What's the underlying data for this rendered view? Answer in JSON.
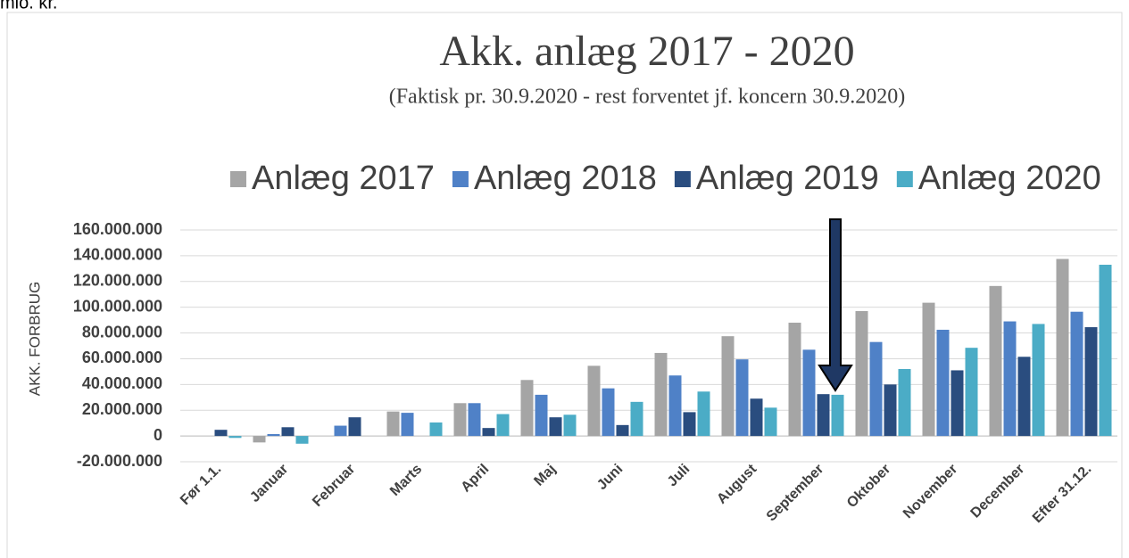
{
  "unit_note": "mio. kr.",
  "chart_data": {
    "type": "bar",
    "title": "Akk. anlæg 2017 - 2020",
    "subtitle": "(Faktisk pr. 30.9.2020 - rest forventet jf. koncern 30.9.2020)",
    "y_label": "AKK. FORBRUG",
    "categories": [
      "Før 1.1.",
      "Januar",
      "Februar",
      "Marts",
      "April",
      "Maj",
      "Juni",
      "Juli",
      "August",
      "September",
      "Oktober",
      "November",
      "December",
      "Efter 31.12."
    ],
    "series": [
      {
        "name": "Anlæg 2017",
        "color": "#a5a5a5",
        "values": [
          0,
          -5000000,
          0,
          19000000,
          25500000,
          43500000,
          54500000,
          64500000,
          77500000,
          88000000,
          97000000,
          103500000,
          116500000,
          137500000
        ]
      },
      {
        "name": "Anlæg 2018",
        "color": "#4f81c7",
        "values": [
          0,
          1500000,
          8000000,
          18000000,
          25500000,
          32000000,
          37000000,
          47000000,
          59500000,
          67000000,
          73000000,
          82500000,
          89000000,
          96500000
        ]
      },
      {
        "name": "Anlæg 2019",
        "color": "#2a4d7f",
        "values": [
          4800000,
          6800000,
          14500000,
          0,
          6200000,
          14500000,
          8500000,
          18500000,
          29000000,
          32500000,
          40000000,
          51000000,
          61500000,
          84500000
        ]
      },
      {
        "name": "Anlæg 2020",
        "color": "#4bacc6",
        "values": [
          -1500000,
          -6000000,
          0,
          10500000,
          17000000,
          16500000,
          26500000,
          34500000,
          22000000,
          32000000,
          52000000,
          68500000,
          87000000,
          133000000
        ]
      }
    ],
    "ylim": [
      -20000000,
      160000000
    ],
    "yticks": [
      {
        "value": -20000000,
        "label": "-20.000.000"
      },
      0,
      {
        "value": 20000000,
        "label": "20.000.000"
      },
      {
        "value": 40000000,
        "label": "40.000.000"
      },
      {
        "value": 60000000,
        "label": "60.000.000"
      },
      {
        "value": 80000000,
        "label": "80.000.000"
      },
      {
        "value": 100000000,
        "label": "100.000.000"
      },
      {
        "value": 120000000,
        "label": "120.000.000"
      },
      {
        "value": 140000000,
        "label": "140.000.000"
      },
      {
        "value": 160000000,
        "label": "160.000.000"
      }
    ],
    "grid": true,
    "legend": "top"
  }
}
